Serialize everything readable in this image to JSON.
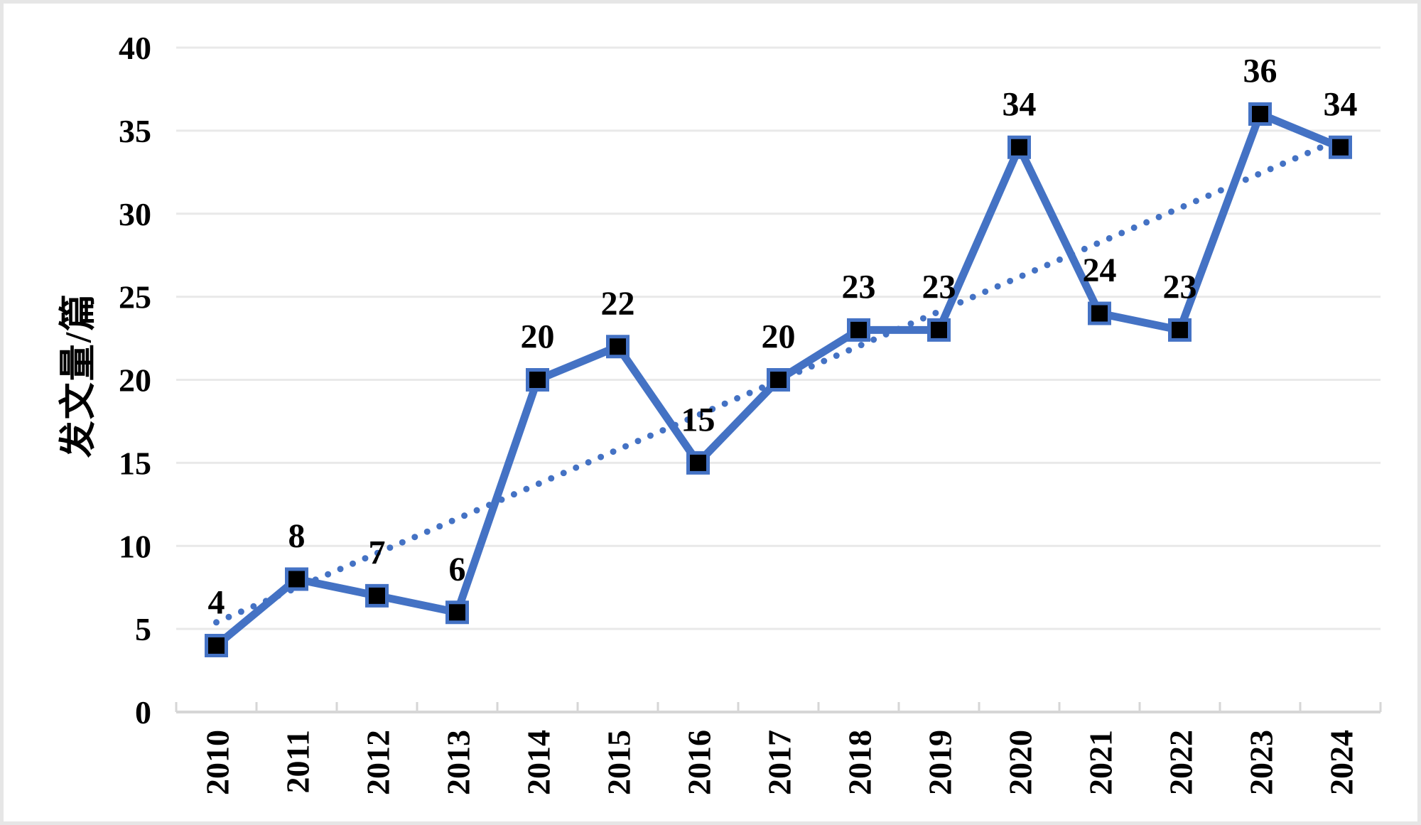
{
  "chart_data": {
    "type": "line",
    "title": "",
    "xlabel": "",
    "ylabel": "发文量/篇",
    "categories": [
      "2010",
      "2011",
      "2012",
      "2013",
      "2014",
      "2015",
      "2016",
      "2017",
      "2018",
      "2019",
      "2020",
      "2021",
      "2022",
      "2023",
      "2024"
    ],
    "series": [
      {
        "name": "发文量",
        "values": [
          4,
          8,
          7,
          6,
          20,
          22,
          15,
          20,
          23,
          23,
          34,
          24,
          23,
          36,
          34
        ],
        "color": "#4472C4",
        "marker": "black-square",
        "data_labels": true
      }
    ],
    "trendline": {
      "type": "linear",
      "style": "dotted",
      "color": "#4472C4",
      "start_value": 5.4,
      "end_value": 34.5
    },
    "ylim": [
      0,
      40
    ],
    "ytick_step": 5,
    "grid": "horizontal",
    "legend": "none",
    "colors": {
      "line": "#4472C4",
      "marker_fill": "#000000",
      "gridline": "#e9e9e9",
      "axis": "#d6d6d6",
      "label": "#000000",
      "background": "#ffffff",
      "frame_border": "#e6e6e6"
    }
  }
}
